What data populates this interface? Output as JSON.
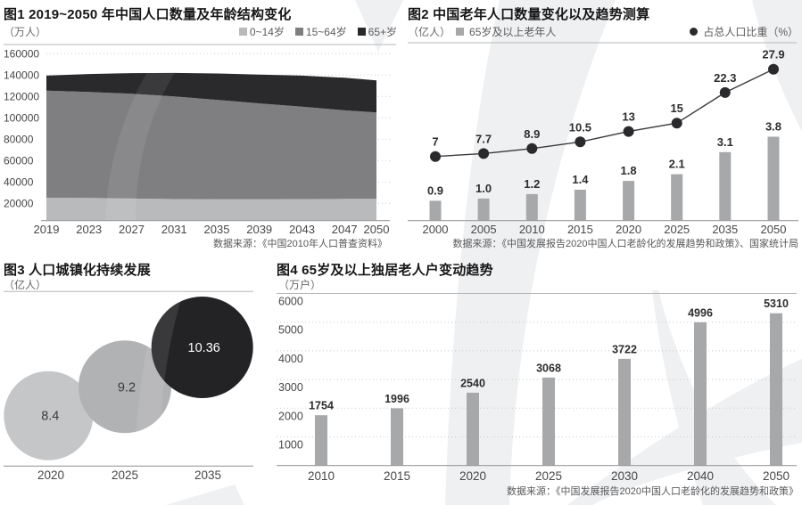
{
  "page": {
    "background": "#ffffff",
    "watermark_color": "#eef0f2",
    "title_color": "#161616",
    "muted_text_color": "#58585a",
    "bar_color": "#a7a8aa",
    "dark_series_color": "#2a2a2c"
  },
  "chart_data": [
    {
      "id": "chart1",
      "type": "area",
      "stacked": true,
      "title": "图1 2019~2050 年中国人口数量及年龄结构变化",
      "unit": "（万人）",
      "ylabel": "万人",
      "source": "数据来源：《中国2010年人口普查资料》",
      "legend_position": "top-right",
      "grid": "dotted-horizontal",
      "legend": [
        {
          "label": "0~14岁",
          "color": "#b9babc"
        },
        {
          "label": "15~64岁",
          "color": "#7f7f82"
        },
        {
          "label": "65+岁",
          "color": "#2a2a2c"
        }
      ],
      "x": [
        2019,
        2023,
        2027,
        2031,
        2035,
        2039,
        2043,
        2047,
        2050
      ],
      "series": [
        {
          "name": "0~14岁",
          "color": "#b9babc",
          "values": [
            25200,
            25000,
            24500,
            24000,
            23800,
            23800,
            24000,
            24100,
            24100
          ]
        },
        {
          "name": "15~64岁",
          "color": "#7f7f82",
          "values": [
            100300,
            99200,
            98000,
            96000,
            93000,
            89700,
            86500,
            82900,
            80900
          ]
        },
        {
          "name": "65+岁",
          "color": "#2a2a2c",
          "values": [
            14000,
            16800,
            19300,
            22000,
            24700,
            27000,
            29000,
            30500,
            30000
          ]
        }
      ],
      "yticks": [
        160000,
        140000,
        120000,
        100000,
        80000,
        60000,
        40000,
        20000
      ],
      "ylim": [
        0,
        160000
      ]
    },
    {
      "id": "chart2",
      "type": "combo-bar-line",
      "title": "图2 中国老年人口数量变化以及趋势测算",
      "unit": "（亿人）",
      "source": "数据来源：《中国发展报告2020中国人口老龄化的发展趋势和政策》、国家统计局",
      "categories": [
        "2000",
        "2005",
        "2010",
        "2015",
        "2020",
        "2025",
        "2035",
        "2050"
      ],
      "series": [
        {
          "name": "65岁及以上老年人",
          "legend_label": "65岁及以上老年人",
          "type": "bar",
          "unit": "亿人",
          "color": "#a7a8aa",
          "values": [
            0.9,
            1.0,
            1.2,
            1.4,
            1.8,
            2.1,
            3.1,
            3.8
          ],
          "labels": [
            "0.9",
            "1.0",
            "1.2",
            "1.4",
            "1.8",
            "2.1",
            "3.1",
            "3.8"
          ]
        },
        {
          "name": "占总人口比重",
          "legend_label": "占总人口比重（%）",
          "type": "line",
          "unit": "%",
          "color": "#2a2a2c",
          "values": [
            7,
            7.7,
            8.9,
            10.5,
            13,
            15,
            22.3,
            27.9
          ],
          "labels": [
            "7",
            "7.7",
            "8.9",
            "10.5",
            "13",
            "15",
            "22.3",
            "27.9"
          ]
        }
      ]
    },
    {
      "id": "chart3",
      "type": "bubble",
      "title": "图3 人口城镇化持续发展",
      "unit": "（亿人）",
      "categories": [
        "2020",
        "2025",
        "2035"
      ],
      "values": [
        8.4,
        9.2,
        10.36
      ],
      "labels": [
        "8.4",
        "9.2",
        "10.36"
      ],
      "bubble_colors": [
        "#c5c6c8",
        "#b1b2b4",
        "#232326"
      ],
      "label_colors": [
        "#3b3b3d",
        "#3b3b3d",
        "#ffffff"
      ]
    },
    {
      "id": "chart4",
      "type": "bar",
      "title": "图4 65岁及以上独居老人户变动趋势",
      "unit": "（万户）",
      "source": "数据来源：《中国发展报告2020中国人口老龄化的发展趋势和政策》",
      "categories": [
        "2010",
        "2015",
        "2020",
        "2025",
        "2030",
        "2040",
        "2050"
      ],
      "values": [
        1754,
        1996,
        2540,
        3068,
        3722,
        4996,
        5310
      ],
      "labels": [
        "1754",
        "1996",
        "2540",
        "3068",
        "3722",
        "4996",
        "5310"
      ],
      "bar_color": "#a7a8aa",
      "yticks": [
        6000,
        5000,
        4000,
        3000,
        2000,
        1000
      ],
      "ylim": [
        0,
        6000
      ],
      "grid": "dotted-horizontal"
    }
  ]
}
